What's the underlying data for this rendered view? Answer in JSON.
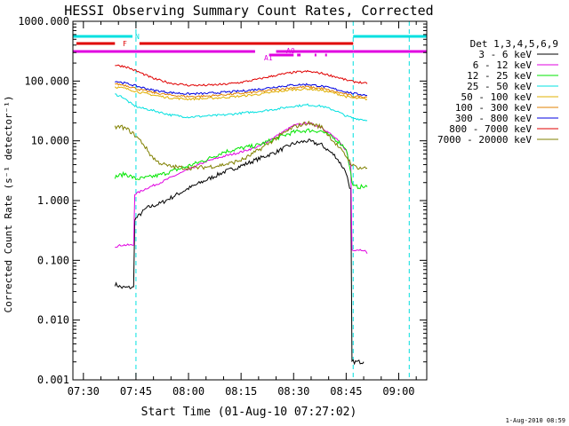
{
  "chart_data": {
    "type": "line",
    "title": "HESSI Observing Summary Count Rates, Corrected",
    "xlabel": "Start Time (01-Aug-10 07:27:02)",
    "ylabel": "Corrected Count Rate (s⁻¹ detector⁻¹)",
    "yscale": "log",
    "ylim": [
      0.001,
      1000
    ],
    "xlim": [
      "07:27",
      "09:08"
    ],
    "xticks": [
      "07:30",
      "07:45",
      "08:00",
      "08:15",
      "08:30",
      "08:45",
      "09:00"
    ],
    "yticks": [
      "0.001",
      "0.010",
      "0.100",
      "1.000",
      "10.000",
      "100.000",
      "1000.000"
    ],
    "legend_title": "Det 1,3,4,5,6,9",
    "legend_position": "right",
    "footer": "1-Aug-2010 08:59",
    "vlines": [
      "07:27",
      "07:45",
      "08:47",
      "09:03"
    ],
    "series": [
      {
        "name": "3 - 6 keV",
        "color": "#000000",
        "x": [
          "07:39",
          "07:41",
          "07:42",
          "07:43",
          "07:44",
          "07:45",
          "07:48",
          "07:52",
          "07:56",
          "08:00",
          "08:05",
          "08:10",
          "08:15",
          "08:20",
          "08:25",
          "08:30",
          "08:34",
          "08:38",
          "08:42",
          "08:45",
          "08:46",
          "08:47",
          "08:48",
          "08:49",
          "08:50"
        ],
        "y": [
          0.04,
          0.035,
          0.035,
          0.035,
          0.035,
          0.5,
          0.75,
          0.9,
          1.2,
          1.6,
          2.2,
          3.0,
          3.8,
          5.0,
          6.5,
          9.0,
          10.0,
          8.5,
          5.5,
          3.0,
          1.5,
          0.002,
          0.002,
          0.002,
          0.002
        ]
      },
      {
        "name": "6 - 12 keV",
        "color": "#e000e0",
        "x": [
          "07:39",
          "07:41",
          "07:42",
          "07:43",
          "07:44",
          "07:45",
          "07:48",
          "07:52",
          "07:56",
          "08:00",
          "08:05",
          "08:10",
          "08:15",
          "08:20",
          "08:25",
          "08:30",
          "08:34",
          "08:38",
          "08:42",
          "08:45",
          "08:46",
          "08:47",
          "08:48",
          "08:49",
          "08:50",
          "08:51"
        ],
        "y": [
          0.17,
          0.18,
          0.18,
          0.18,
          0.18,
          1.3,
          1.6,
          2.0,
          2.6,
          3.3,
          4.5,
          5.5,
          6.5,
          8.0,
          12.0,
          18.0,
          20.0,
          17.0,
          11.0,
          7.0,
          4.0,
          0.15,
          0.15,
          0.15,
          0.15,
          0.13
        ]
      },
      {
        "name": "12 - 25 keV",
        "color": "#00e600",
        "x": [
          "07:39",
          "07:42",
          "07:45",
          "07:48",
          "07:52",
          "07:56",
          "08:00",
          "08:05",
          "08:10",
          "08:15",
          "08:20",
          "08:25",
          "08:30",
          "08:34",
          "08:38",
          "08:42",
          "08:45",
          "08:47",
          "08:49",
          "08:51"
        ],
        "y": [
          2.5,
          2.8,
          2.3,
          2.4,
          2.7,
          3.2,
          3.8,
          4.8,
          6.5,
          7.5,
          8.5,
          11.0,
          14.0,
          15.0,
          14.5,
          10.5,
          7.5,
          1.7,
          1.7,
          1.7
        ]
      },
      {
        "name": "25 - 50 keV",
        "color": "#00e0e0",
        "x": [
          "07:39",
          "07:41",
          "07:44",
          "07:46",
          "07:50",
          "07:55",
          "08:00",
          "08:05",
          "08:10",
          "08:15",
          "08:20",
          "08:25",
          "08:30",
          "08:34",
          "08:38",
          "08:42",
          "08:45",
          "08:47",
          "08:49",
          "08:51"
        ],
        "y": [
          60,
          55,
          40,
          36,
          32,
          27,
          25,
          26,
          27,
          29,
          31,
          34,
          38,
          40,
          38,
          32,
          26,
          24,
          23,
          22
        ]
      },
      {
        "name": "50 - 100 keV",
        "color": "#e0b000",
        "x": [
          "07:39",
          "07:42",
          "07:46",
          "07:50",
          "07:55",
          "08:00",
          "08:05",
          "08:10",
          "08:15",
          "08:20",
          "08:25",
          "08:30",
          "08:34",
          "08:38",
          "08:42",
          "08:45",
          "08:47",
          "08:49",
          "08:51"
        ],
        "y": [
          80,
          75,
          65,
          58,
          52,
          50,
          51,
          53,
          56,
          60,
          66,
          72,
          74,
          70,
          62,
          55,
          52,
          51,
          50
        ]
      },
      {
        "name": "100 - 300 keV",
        "color": "#e08000",
        "x": [
          "07:39",
          "07:42",
          "07:46",
          "07:50",
          "07:55",
          "08:00",
          "08:05",
          "08:10",
          "08:15",
          "08:20",
          "08:25",
          "08:30",
          "08:34",
          "08:38",
          "08:42",
          "08:45",
          "08:47",
          "08:49",
          "08:51"
        ],
        "y": [
          90,
          85,
          72,
          64,
          58,
          55,
          56,
          59,
          62,
          66,
          72,
          78,
          80,
          75,
          66,
          60,
          56,
          55,
          54
        ]
      },
      {
        "name": "300 - 800 keV",
        "color": "#0000e0",
        "x": [
          "07:39",
          "07:42",
          "07:46",
          "07:50",
          "07:55",
          "08:00",
          "08:05",
          "08:10",
          "08:15",
          "08:20",
          "08:25",
          "08:30",
          "08:34",
          "08:38",
          "08:42",
          "08:45",
          "08:47",
          "08:49",
          "08:51"
        ],
        "y": [
          100,
          92,
          80,
          70,
          64,
          61,
          62,
          65,
          68,
          73,
          80,
          86,
          88,
          82,
          73,
          66,
          62,
          60,
          58
        ]
      },
      {
        "name": "800 - 7000 keV",
        "color": "#e00000",
        "x": [
          "07:39",
          "07:42",
          "07:46",
          "07:50",
          "07:55",
          "08:00",
          "08:05",
          "08:10",
          "08:15",
          "08:20",
          "08:25",
          "08:30",
          "08:34",
          "08:38",
          "08:42",
          "08:45",
          "08:47",
          "08:49",
          "08:51"
        ],
        "y": [
          185,
          175,
          140,
          110,
          92,
          85,
          85,
          88,
          95,
          108,
          125,
          140,
          145,
          135,
          118,
          104,
          98,
          95,
          90
        ]
      },
      {
        "name": "7000 - 20000 keV",
        "color": "#808000",
        "x": [
          "07:39",
          "07:41",
          "07:43",
          "07:45",
          "07:47",
          "07:49",
          "07:51",
          "07:54",
          "07:57",
          "08:00",
          "08:04",
          "08:08",
          "08:12",
          "08:16",
          "08:20",
          "08:25",
          "08:30",
          "08:34",
          "08:38",
          "08:42",
          "08:45",
          "08:47",
          "08:49",
          "08:51"
        ],
        "y": [
          17,
          17,
          15,
          12,
          9,
          6,
          4.5,
          3.8,
          3.6,
          3.5,
          3.6,
          3.8,
          4.2,
          5.0,
          7.0,
          11.0,
          17.0,
          20.0,
          17.0,
          9.0,
          5.5,
          3.8,
          3.5,
          3.5
        ]
      }
    ],
    "flag_bars": [
      {
        "label": "N",
        "color": "#00e0e0",
        "segments": [
          [
            "07:27",
            "07:44"
          ],
          [
            "08:47",
            "09:08"
          ]
        ]
      },
      {
        "label": "F",
        "color": "#e00000",
        "segments": [
          [
            "07:28",
            "07:39"
          ],
          [
            "07:46",
            "08:47"
          ]
        ]
      },
      {
        "label": "A0",
        "color": "#e000e0",
        "segments": [
          [
            "08:23",
            "08:30"
          ],
          [
            "08:31",
            "08:32"
          ],
          [
            "08:36",
            "08:36"
          ],
          [
            "08:39",
            "08:39"
          ]
        ]
      },
      {
        "label": "A1",
        "color": "#e000e0",
        "segments": [
          [
            "07:27",
            "08:19"
          ],
          [
            "08:25",
            "08:47"
          ],
          [
            "08:47",
            "09:08"
          ]
        ]
      }
    ]
  }
}
